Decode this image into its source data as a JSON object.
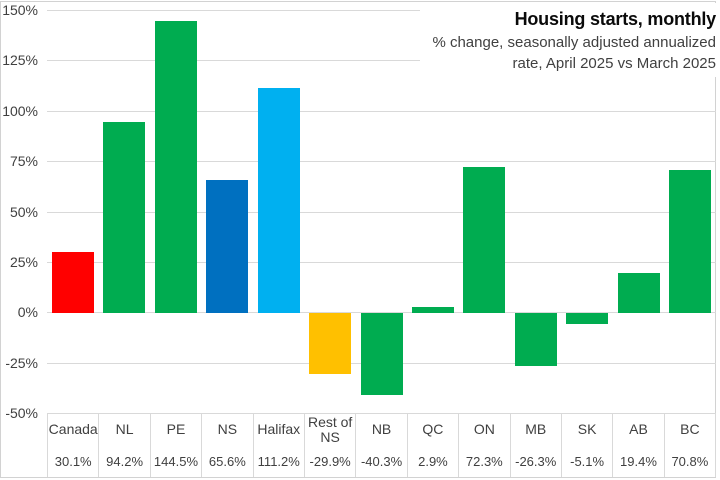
{
  "chart_data": {
    "type": "bar",
    "title": "Housing starts, monthly",
    "subtitle_lines": [
      "% change, seasonally adjusted annualized",
      "rate, April 2025 vs March 2025"
    ],
    "categories": [
      "Canada",
      "NL",
      "PE",
      "NS",
      "Halifax",
      "Rest of NS",
      "NB",
      "QC",
      "ON",
      "MB",
      "SK",
      "AB",
      "BC"
    ],
    "values": [
      30.1,
      94.2,
      144.5,
      65.6,
      111.2,
      -29.9,
      -40.3,
      2.9,
      72.3,
      -26.3,
      -5.1,
      19.4,
      70.8
    ],
    "value_labels": [
      "30.1%",
      "94.2%",
      "144.5%",
      "65.6%",
      "111.2%",
      "-29.9%",
      "-40.3%",
      "2.9%",
      "72.3%",
      "-26.3%",
      "-5.1%",
      "19.4%",
      "70.8%"
    ],
    "bar_colors": [
      "#FF0000",
      "#00AC50",
      "#00AC50",
      "#0070C0",
      "#00B0F0",
      "#FFC000",
      "#00AC50",
      "#00AC50",
      "#00AC50",
      "#00AC50",
      "#00AC50",
      "#00AC50",
      "#00AC50"
    ],
    "y_ticks": {
      "labels": [
        "150%",
        "125%",
        "100%",
        "75%",
        "50%",
        "25%",
        "0%",
        "-25%",
        "-50%"
      ],
      "values": [
        150,
        125,
        100,
        75,
        50,
        25,
        0,
        -25,
        -50
      ]
    },
    "ylim": [
      -50,
      150
    ],
    "xlabel": "",
    "ylabel": "",
    "grid": true,
    "legend_position": "none",
    "colors": {
      "gridline": "#D9D9D9",
      "border": "#D2D2D2",
      "axis_text": "#404040",
      "title_text": "#0A0A0A",
      "subtitle_text": "#404040"
    }
  }
}
